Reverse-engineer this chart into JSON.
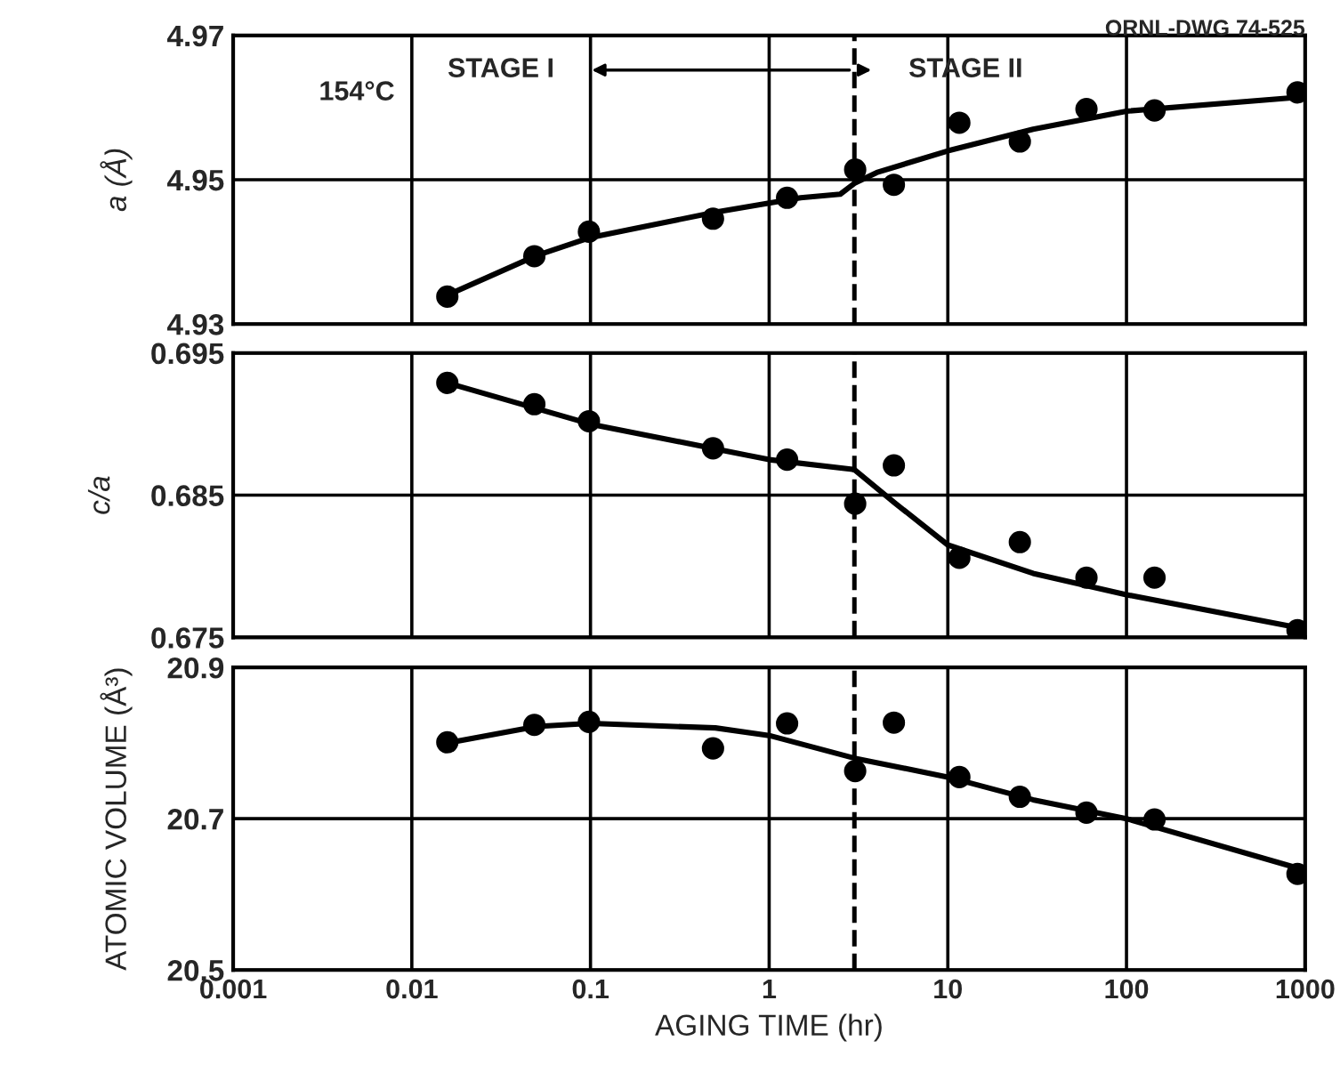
{
  "chart_data": [
    {
      "type": "scatter",
      "ylabel": "a (Å)",
      "annotations": [
        "154°C",
        "STAGE I",
        "STAGE II",
        "ORNL-DWG 74-525"
      ],
      "xlim": [
        0.001,
        1000
      ],
      "ylim": [
        4.93,
        4.97
      ],
      "yticks": [
        4.93,
        4.95,
        4.97
      ],
      "log": "x",
      "grid": true,
      "tick_labels": "y",
      "marker": "circle",
      "ref_lines": [
        {
          "axis": "x",
          "value": 3,
          "line_style": "dashed"
        }
      ],
      "series": [
        {
          "color": "#000000",
          "x": [
            0.0158,
            0.0485,
            0.098,
            0.485,
            1.26,
            3.03,
            4.99,
            11.6,
            25.3,
            59.7,
            143.5,
            906
          ],
          "values": [
            4.9338,
            4.9394,
            4.9428,
            4.9446,
            4.9475,
            4.9514,
            4.9493,
            4.9579,
            4.9553,
            4.9598,
            4.9596,
            4.9621
          ]
        },
        {
          "type": "line",
          "color": "#000000",
          "marker": "none",
          "x": [
            0.0158,
            0.05,
            0.1,
            0.5,
            1.5,
            2.5,
            3,
            4,
            10,
            30,
            100,
            1000
          ],
          "values": [
            4.934,
            4.9395,
            4.942,
            4.9455,
            4.9475,
            4.948,
            4.9495,
            4.951,
            4.954,
            4.957,
            4.9595,
            4.9615
          ]
        }
      ]
    },
    {
      "type": "scatter",
      "ylabel": "c/a",
      "xlim": [
        0.001,
        1000
      ],
      "ylim": [
        0.675,
        0.695
      ],
      "yticks": [
        0.675,
        0.685,
        0.695
      ],
      "log": "x",
      "grid": true,
      "tick_labels": "y",
      "marker": "circle",
      "ref_lines": [
        {
          "axis": "x",
          "value": 3,
          "line_style": "dashed"
        }
      ],
      "series": [
        {
          "color": "#000000",
          "x": [
            0.0158,
            0.0485,
            0.098,
            0.485,
            1.26,
            3.03,
            4.99,
            11.6,
            25.3,
            59.7,
            143.5,
            906
          ],
          "values": [
            0.6929,
            0.6914,
            0.6902,
            0.6883,
            0.6875,
            0.6844,
            0.6871,
            0.6806,
            0.6817,
            0.6792,
            0.6792,
            0.6755
          ]
        },
        {
          "type": "line",
          "color": "#000000",
          "marker": "none",
          "x": [
            0.0158,
            0.1,
            1,
            3,
            5,
            10,
            30,
            100,
            900
          ],
          "values": [
            0.6929,
            0.69,
            0.6875,
            0.6868,
            0.6845,
            0.6815,
            0.6795,
            0.678,
            0.6757
          ]
        }
      ]
    },
    {
      "type": "scatter",
      "ylabel": "ATOMIC VOLUME (Å³)",
      "xlabel": "AGING TIME (hr)",
      "xlim": [
        0.001,
        1000
      ],
      "xticks": [
        0.001,
        0.01,
        0.1,
        1,
        10,
        100,
        1000
      ],
      "ylim": [
        20.5,
        20.9
      ],
      "yticks": [
        20.5,
        20.7,
        20.9
      ],
      "log": "x",
      "grid": true,
      "marker": "circle",
      "ref_lines": [
        {
          "axis": "x",
          "value": 3,
          "line_style": "dashed"
        }
      ],
      "series": [
        {
          "color": "#000000",
          "x": [
            0.0158,
            0.0485,
            0.098,
            0.485,
            1.26,
            3.03,
            4.99,
            11.6,
            25.3,
            59.7,
            143.5,
            906
          ],
          "values": [
            20.801,
            20.824,
            20.828,
            20.793,
            20.826,
            20.763,
            20.827,
            20.755,
            20.729,
            20.708,
            20.699,
            20.627
          ]
        },
        {
          "type": "line",
          "color": "#000000",
          "marker": "none",
          "x": [
            0.0158,
            0.05,
            0.1,
            0.5,
            1,
            3,
            10,
            30,
            100,
            900
          ],
          "values": [
            20.8,
            20.822,
            20.826,
            20.82,
            20.81,
            20.78,
            20.755,
            20.725,
            20.7,
            20.635
          ]
        }
      ]
    }
  ]
}
